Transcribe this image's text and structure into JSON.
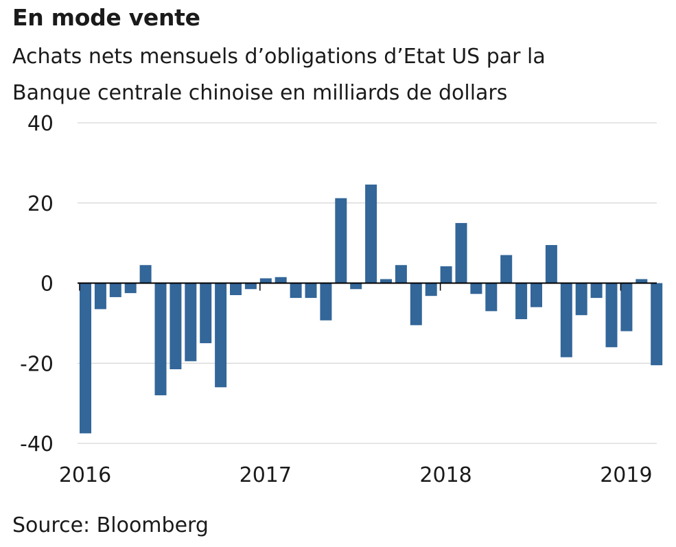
{
  "title": "En mode vente",
  "subtitle": "Achats nets mensuels d’obligations d’Etat US par la Banque centrale chinoise en milliards de dollars",
  "source": "Source: Bloomberg",
  "colors": {
    "bar": "#336699",
    "grid": "#cccccc",
    "zero": "#000000"
  },
  "chart_data": {
    "type": "bar",
    "title": "En mode vente",
    "ylim": [
      -40,
      40
    ],
    "yticks": [
      40,
      20,
      0,
      -20,
      -40
    ],
    "xticks": [
      "2016",
      "2017",
      "2018",
      "2019"
    ],
    "grid": true,
    "categories": [
      "2016-01",
      "2016-02",
      "2016-03",
      "2016-04",
      "2016-05",
      "2016-06",
      "2016-07",
      "2016-08",
      "2016-09",
      "2016-10",
      "2016-11",
      "2016-12",
      "2017-01",
      "2017-02",
      "2017-03",
      "2017-04",
      "2017-05",
      "2017-06",
      "2017-07",
      "2017-08",
      "2017-09",
      "2017-10",
      "2017-11",
      "2017-12",
      "2018-01",
      "2018-02",
      "2018-03",
      "2018-04",
      "2018-05",
      "2018-06",
      "2018-07",
      "2018-08",
      "2018-09",
      "2018-10",
      "2018-11",
      "2018-12",
      "2019-01",
      "2019-02",
      "2019-03"
    ],
    "values": [
      -37.5,
      -6.5,
      -3.5,
      -2.5,
      4.5,
      -28,
      -21.5,
      -19.5,
      -15,
      -26,
      -3,
      -1.5,
      1.2,
      1.5,
      -3.7,
      -3.7,
      -9.3,
      21.2,
      -1.5,
      24.6,
      1,
      4.5,
      -10.5,
      -3.2,
      4.2,
      15,
      -2.7,
      -7,
      7,
      -9,
      -6,
      9.5,
      -18.5,
      -8,
      -3.7,
      -16,
      -12,
      1,
      -20.5
    ]
  }
}
